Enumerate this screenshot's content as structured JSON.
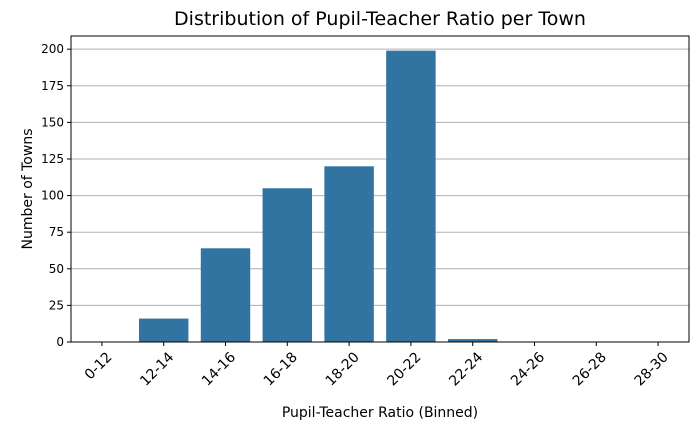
{
  "chart_data": {
    "type": "bar",
    "title": "Distribution of Pupil-Teacher Ratio per Town",
    "xlabel": "Pupil-Teacher Ratio (Binned)",
    "ylabel": "Number of Towns",
    "categories": [
      "0-12",
      "12-14",
      "14-16",
      "16-18",
      "18-20",
      "20-22",
      "22-24",
      "24-26",
      "26-28",
      "28-30"
    ],
    "values": [
      0,
      16,
      64,
      105,
      120,
      199,
      2,
      0,
      0,
      0
    ],
    "ylim": [
      0,
      209
    ],
    "yticks": [
      0,
      25,
      50,
      75,
      100,
      125,
      150,
      175,
      200
    ],
    "grid": "horizontal",
    "legend": "none",
    "bar_color": "#3274a1"
  }
}
